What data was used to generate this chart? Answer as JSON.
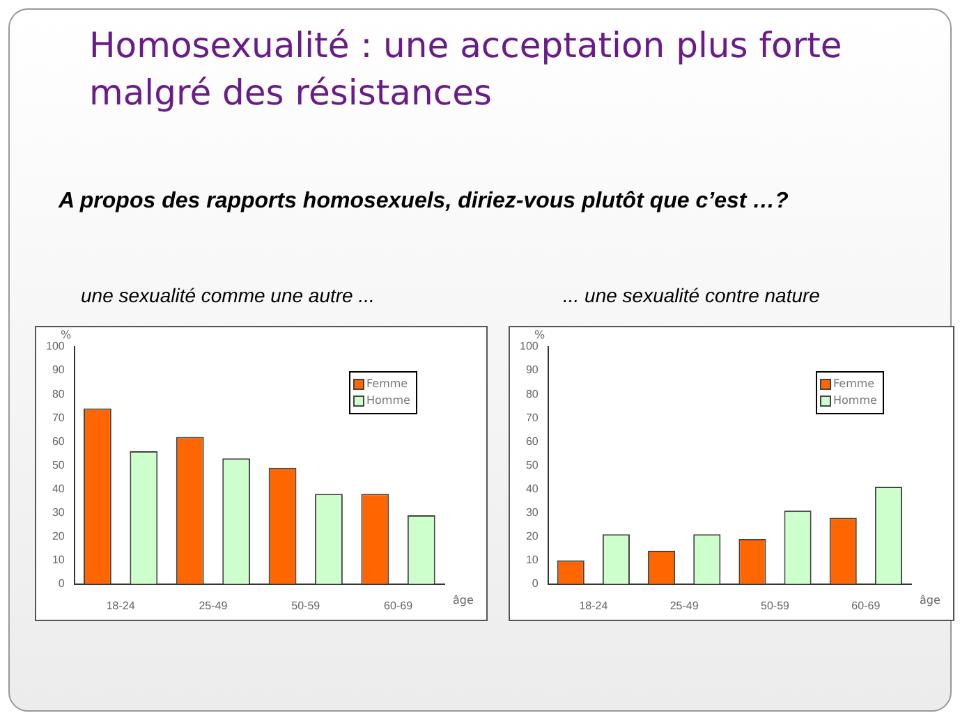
{
  "chart_data": [
    {
      "type": "bar",
      "title": "une sexualité comme une autre ...",
      "annotations": [
        "Homosexualité : une acceptation plus forte malgré des résistances",
        "A propos des rapports homosexuels, diriez-vous plutôt que c’est …?"
      ],
      "xlabel": "âge",
      "ylabel": "%",
      "categories": [
        "18-24",
        "25-49",
        "50-59",
        "60-69"
      ],
      "series": [
        {
          "name": "Femme",
          "color": "#ff6600",
          "values": [
            74,
            62,
            49,
            38
          ]
        },
        {
          "name": "Homme",
          "color": "#ccffcc",
          "values": [
            56,
            53,
            38,
            29
          ]
        }
      ],
      "ylim": [
        0,
        100
      ],
      "yticks": [
        0,
        10,
        20,
        30,
        40,
        50,
        60,
        70,
        80,
        90,
        100
      ],
      "grid": false,
      "legend": "top right"
    },
    {
      "type": "bar",
      "title": "... une sexualité contre nature",
      "xlabel": "âge",
      "ylabel": "%",
      "categories": [
        "18-24",
        "25-49",
        "50-59",
        "60-69"
      ],
      "series": [
        {
          "name": "Femme",
          "color": "#ff6600",
          "values": [
            10,
            14,
            19,
            28
          ]
        },
        {
          "name": "Homme",
          "color": "#ccffcc",
          "values": [
            21,
            21,
            31,
            41
          ]
        }
      ],
      "ylim": [
        0,
        100
      ],
      "yticks": [
        0,
        10,
        20,
        30,
        40,
        50,
        60,
        70,
        80,
        90,
        100
      ],
      "grid": false,
      "legend": "top right"
    }
  ]
}
